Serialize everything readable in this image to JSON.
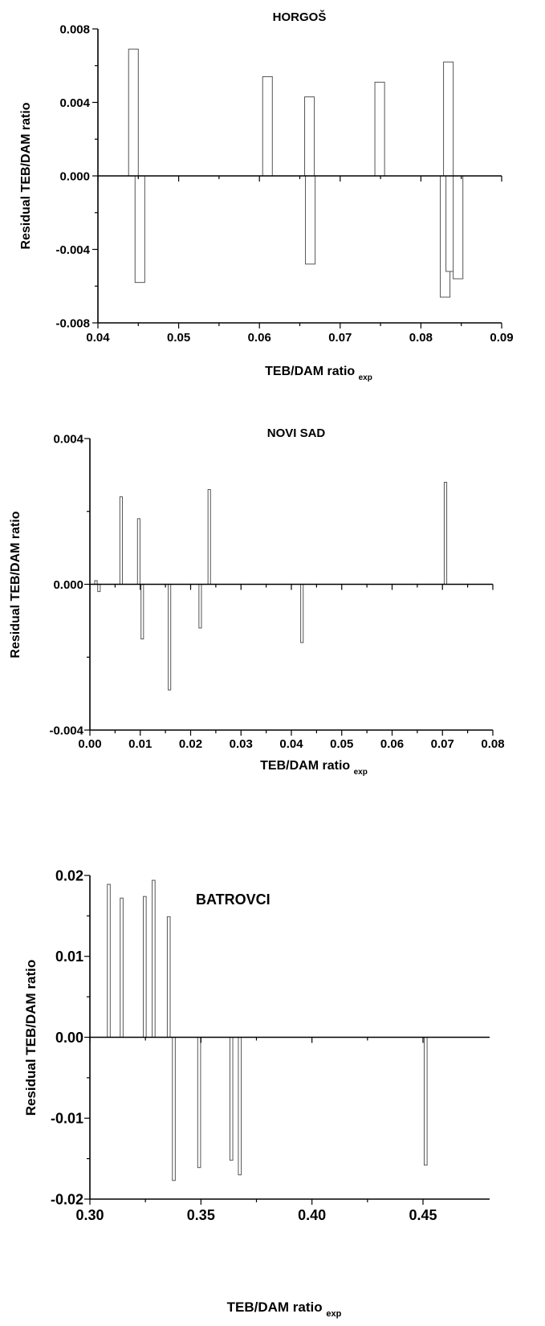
{
  "chart_data": [
    {
      "type": "bar",
      "title": "HORGOŠ",
      "xlabel": "TEB/DAM ratio",
      "xlabel_sub": "exp",
      "ylabel": "Residual TEB/DAM ratio",
      "xlim": [
        0.04,
        0.09
      ],
      "ylim": [
        -0.008,
        0.008
      ],
      "xticks": [
        0.04,
        0.05,
        0.06,
        0.07,
        0.08,
        0.09
      ],
      "xtick_labels": [
        "0.04",
        "0.05",
        "0.06",
        "0.07",
        "0.08",
        "0.09"
      ],
      "yticks": [
        -0.008,
        -0.004,
        0.0,
        0.004,
        0.008
      ],
      "ytick_labels": [
        "-0.008",
        "-0.004",
        "0.000",
        "0.004",
        "0.008"
      ],
      "bar_width": 0.0012,
      "x": [
        0.0444,
        0.0452,
        0.061,
        0.0662,
        0.0663,
        0.0749,
        0.083,
        0.0834,
        0.0837,
        0.0846
      ],
      "values": [
        0.0069,
        -0.0058,
        0.0054,
        0.0043,
        -0.0048,
        0.0051,
        -0.0066,
        0.0062,
        -0.0052,
        -0.0056
      ]
    },
    {
      "type": "bar",
      "title": "NOVI SAD",
      "xlabel": "TEB/DAM ratio",
      "xlabel_sub": "exp",
      "ylabel": "Residual TEB/DAM ratio",
      "xlim": [
        0.0,
        0.08
      ],
      "ylim": [
        -0.004,
        0.004
      ],
      "xticks": [
        0.0,
        0.01,
        0.02,
        0.03,
        0.04,
        0.05,
        0.06,
        0.07,
        0.08
      ],
      "xtick_labels": [
        "0.00",
        "0.01",
        "0.02",
        "0.03",
        "0.04",
        "0.05",
        "0.06",
        "0.07",
        "0.08"
      ],
      "yticks": [
        -0.004,
        0.0,
        0.004
      ],
      "ytick_labels": [
        "-0.004",
        "0.000",
        "0.004"
      ],
      "bar_width": 0.0005,
      "x": [
        0.0012,
        0.0018,
        0.0062,
        0.0097,
        0.0104,
        0.0158,
        0.0219,
        0.0237,
        0.0421,
        0.0706
      ],
      "values": [
        0.0001,
        -0.0002,
        0.0024,
        0.0018,
        -0.0015,
        -0.0029,
        -0.0012,
        0.0026,
        -0.0016,
        0.0028
      ]
    },
    {
      "type": "bar",
      "title": "BATROVCI",
      "xlabel": "TEB/DAM ratio",
      "xlabel_sub": "exp",
      "ylabel": "Residual TEB/DAM ratio",
      "xlim": [
        0.3,
        0.48
      ],
      "ylim": [
        -0.02,
        0.02
      ],
      "xticks": [
        0.3,
        0.35,
        0.4,
        0.45
      ],
      "xtick_labels": [
        "0.30",
        "0.35",
        "0.40",
        "0.45"
      ],
      "yticks": [
        -0.02,
        -0.01,
        0.0,
        0.01,
        0.02
      ],
      "ytick_labels": [
        "-0.02",
        "-0.01",
        "0.00",
        "0.01",
        "0.02"
      ],
      "bar_width": 0.0013,
      "x": [
        0.3085,
        0.3143,
        0.3247,
        0.3287,
        0.3355,
        0.3378,
        0.3492,
        0.3637,
        0.3675,
        0.4512
      ],
      "values": [
        0.0189,
        0.0172,
        0.0174,
        0.0194,
        0.0149,
        -0.0177,
        -0.0161,
        -0.0152,
        -0.017,
        -0.0158
      ]
    }
  ]
}
